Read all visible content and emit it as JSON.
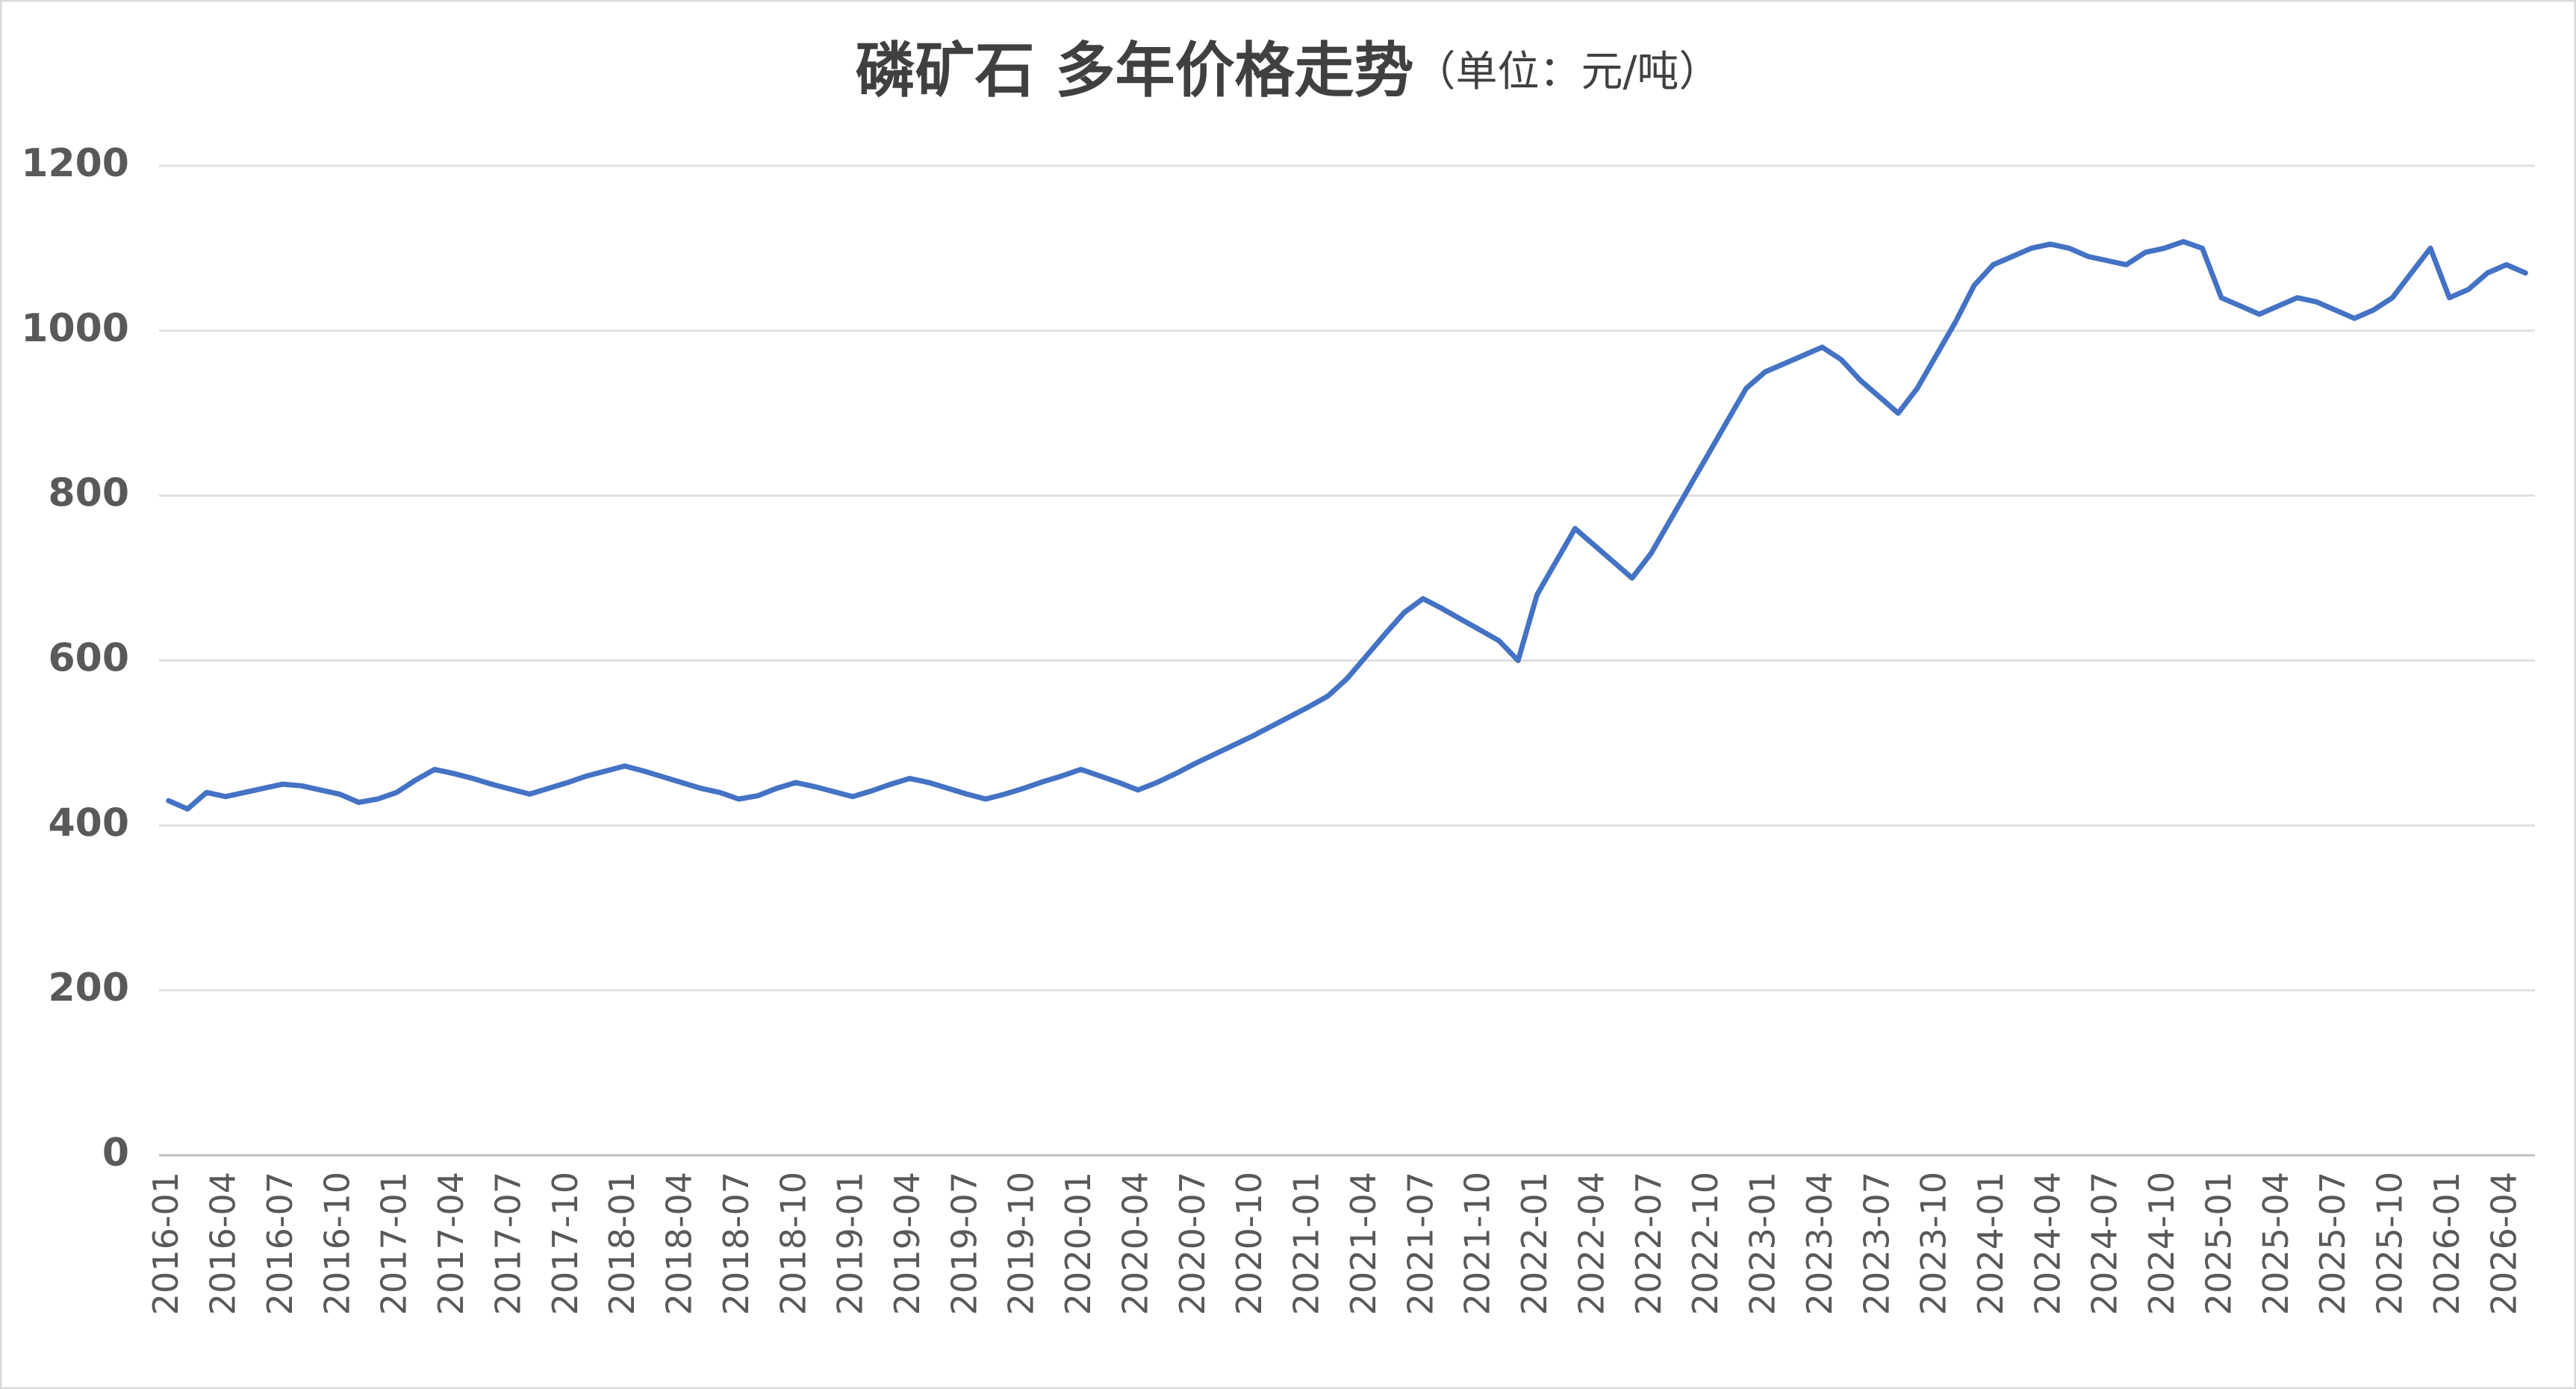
{
  "chart_data": {
    "type": "line",
    "title": "磷矿石 多年价格走势",
    "subtitle": "（单位：元/吨）",
    "categories": [
      "2016-01",
      null,
      null,
      "2016-04",
      null,
      null,
      "2016-07",
      null,
      null,
      "2016-10",
      null,
      null,
      "2017-01",
      null,
      null,
      "2017-04",
      null,
      null,
      "2017-07",
      null,
      null,
      "2017-10",
      null,
      null,
      "2018-01",
      null,
      null,
      "2018-04",
      null,
      null,
      "2018-07",
      null,
      null,
      "2018-10",
      null,
      null,
      "2019-01",
      null,
      null,
      "2019-04",
      null,
      null,
      "2019-07",
      null,
      null,
      "2019-10",
      null,
      null,
      "2020-01",
      null,
      null,
      "2020-04",
      null,
      null,
      "2020-07",
      null,
      null,
      "2020-10",
      null,
      null,
      "2021-01",
      null,
      null,
      "2021-04",
      null,
      null,
      "2021-07",
      null,
      null,
      "2021-10",
      null,
      null,
      "2022-01",
      null,
      null,
      "2022-04",
      null,
      null,
      "2022-07",
      null,
      null,
      "2022-10",
      null,
      null,
      "2023-01",
      null,
      null,
      "2023-04",
      null,
      null,
      "2023-07",
      null,
      null,
      "2023-10",
      null,
      null,
      "2024-01",
      null,
      null,
      "2024-04",
      null,
      null,
      "2024-07",
      null,
      null,
      "2024-10",
      null,
      null,
      "2025-01",
      null,
      null,
      "2025-04",
      null,
      null,
      "2025-07",
      null,
      null,
      "2025-10",
      null,
      null,
      "2026-01",
      null,
      null,
      "2026-04",
      null
    ],
    "series": [
      {
        "name": "磷矿石",
        "color": "#4472c4",
        "values": [
          430,
          420,
          440,
          435,
          440,
          445,
          450,
          448,
          443,
          438,
          428,
          432,
          440,
          455,
          468,
          463,
          457,
          450,
          444,
          438,
          445,
          452,
          460,
          466,
          472,
          466,
          459,
          452,
          445,
          440,
          432,
          436,
          445,
          452,
          447,
          441,
          435,
          442,
          450,
          457,
          452,
          445,
          438,
          432,
          438,
          445,
          453,
          460,
          468,
          460,
          452,
          443,
          452,
          463,
          475,
          486,
          497,
          508,
          520,
          532,
          544,
          557,
          578,
          605,
          632,
          658,
          675,
          663,
          650,
          637,
          624,
          600,
          680,
          720,
          760,
          740,
          720,
          700,
          730,
          770,
          810,
          850,
          890,
          930,
          950,
          960,
          970,
          980,
          965,
          940,
          920,
          900,
          930,
          970,
          1010,
          1055,
          1080,
          1090,
          1100,
          1105,
          1100,
          1090,
          1085,
          1080,
          1095,
          1100,
          1108,
          1100,
          1040,
          1030,
          1020,
          1030,
          1040,
          1035,
          1025,
          1015,
          1025,
          1040,
          1070,
          1100,
          1040,
          1050,
          1070,
          1080,
          1070
        ]
      }
    ],
    "ylim": [
      0,
      1200
    ],
    "yticks": [
      0,
      200,
      400,
      600,
      800,
      1000,
      1200
    ],
    "grid": true
  }
}
